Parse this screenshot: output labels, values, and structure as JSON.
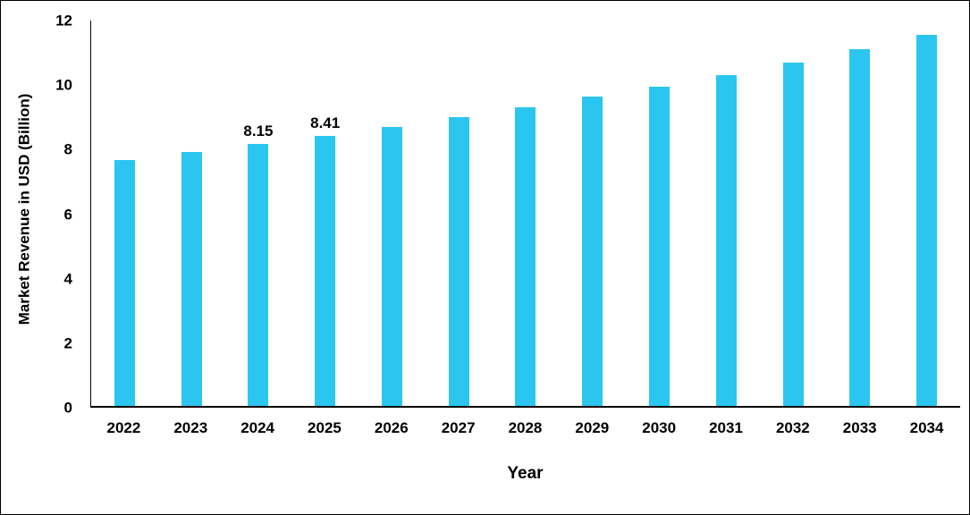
{
  "chart_data": {
    "type": "bar",
    "title": "",
    "xlabel": "Year",
    "ylabel": "Market Revenue in USD (Billion)",
    "categories": [
      "2022",
      "2023",
      "2024",
      "2025",
      "2026",
      "2027",
      "2028",
      "2029",
      "2030",
      "2031",
      "2032",
      "2033",
      "2034"
    ],
    "values": [
      7.65,
      7.9,
      8.15,
      8.41,
      8.7,
      9.0,
      9.3,
      9.62,
      9.95,
      10.3,
      10.7,
      11.1,
      11.55
    ],
    "data_labels": [
      "",
      "",
      "8.15",
      "8.41",
      "",
      "",
      "",
      "",
      "",
      "",
      "",
      "",
      ""
    ],
    "ylim": [
      0,
      12
    ],
    "yticks": [
      0,
      2,
      4,
      6,
      8,
      10,
      12
    ],
    "bar_color": "#2BC6F0",
    "grid": false,
    "legend": "none"
  }
}
